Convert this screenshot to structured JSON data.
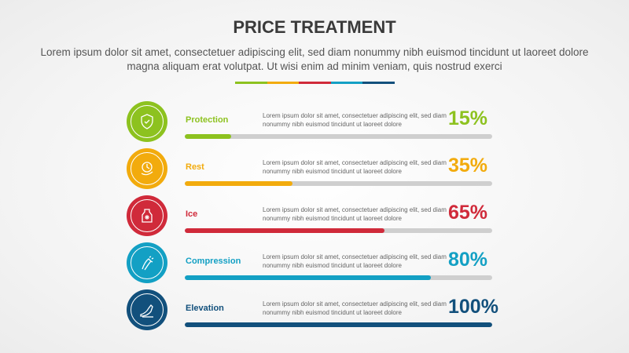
{
  "title": "PRICE TREATMENT",
  "subtitle": "Lorem ipsum dolor sit amet, consectetuer adipiscing elit, sed diam nonummy nibh euismod tincidunt ut laoreet dolore magna aliquam erat volutpat. Ut wisi enim ad minim veniam, quis nostrud exerci",
  "items": [
    {
      "label": "Protection",
      "icon": "shield-check-icon",
      "color": "#8dc21f",
      "percent_text": "15%",
      "percent": 15,
      "description": "Lorem ipsum dolor sit amet, consectetuer adipiscing elit, sed diam nonummy nibh euismod tincidunt ut laoreet dolore"
    },
    {
      "label": "Rest",
      "icon": "clock-hand-icon",
      "color": "#f2ab0d",
      "percent_text": "35%",
      "percent": 35,
      "description": "Lorem ipsum dolor sit amet, consectetuer adipiscing elit, sed diam nonummy nibh euismod tincidunt ut laoreet dolore"
    },
    {
      "label": "Ice",
      "icon": "ice-pack-icon",
      "color": "#d02a3a",
      "percent_text": "65%",
      "percent": 65,
      "description": "Lorem ipsum dolor sit amet, consectetuer adipiscing elit, sed diam nonummy nibh euismod tincidunt ut laoreet dolore"
    },
    {
      "label": "Compression",
      "icon": "compression-arm-icon",
      "color": "#13a0c4",
      "percent_text": "80%",
      "percent": 80,
      "description": "Lorem ipsum dolor sit amet, consectetuer adipiscing elit, sed diam nonummy nibh euismod tincidunt ut laoreet dolore"
    },
    {
      "label": "Elevation",
      "icon": "elevated-leg-icon",
      "color": "#12507c",
      "percent_text": "100%",
      "percent": 100,
      "description": "Lorem ipsum dolor sit amet, consectetuer adipiscing elit, sed diam nonummy nibh euismod tincidunt ut laoreet dolore"
    }
  ]
}
